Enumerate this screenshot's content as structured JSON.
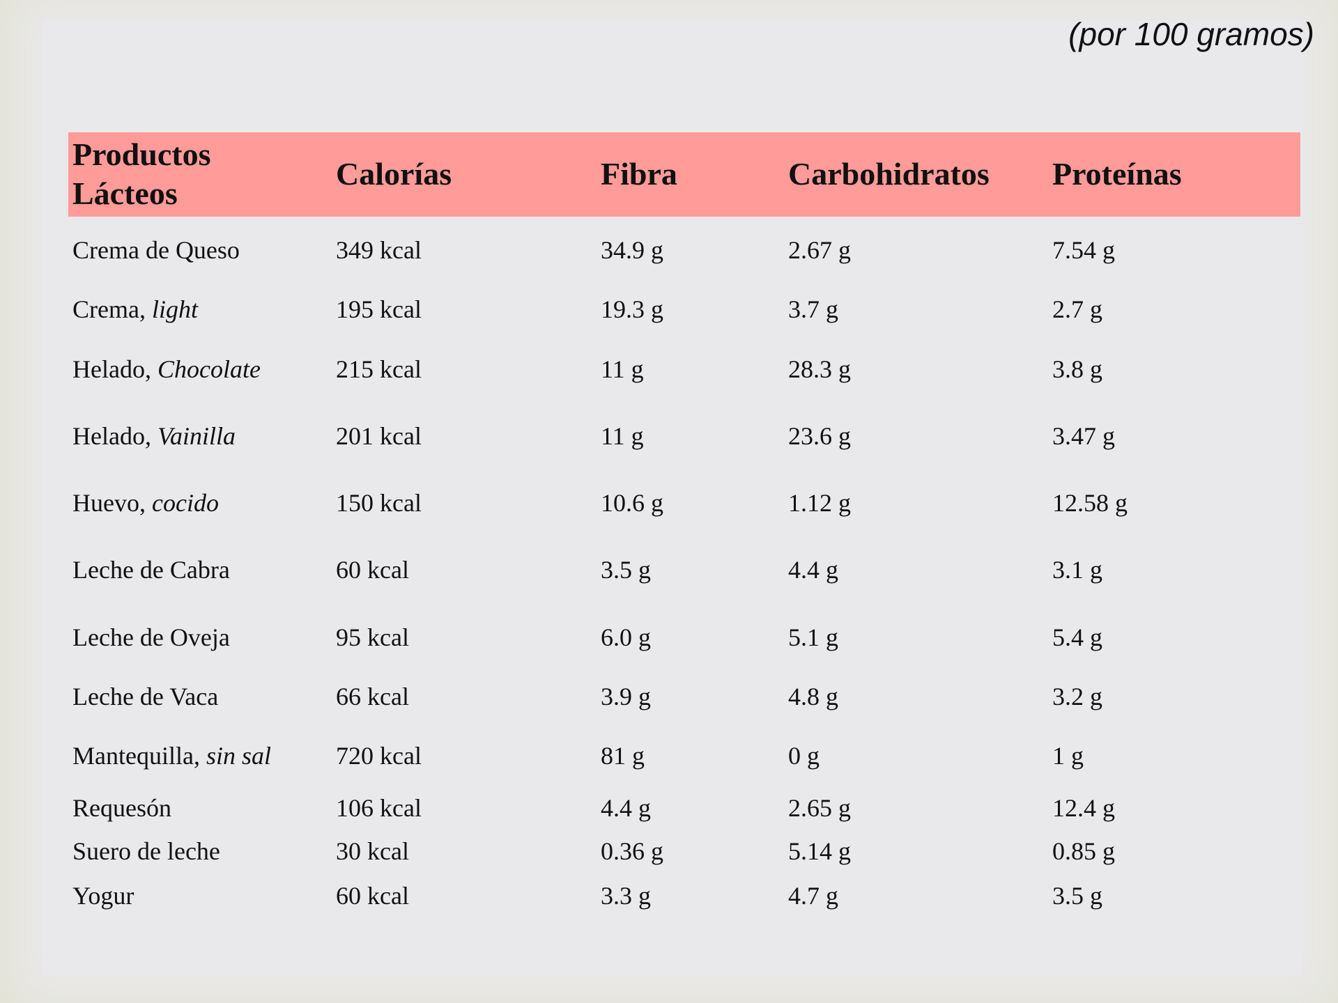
{
  "note": "(por 100 gramos)",
  "headers": [
    "Productos Lácteos",
    "Calorías",
    "Fibra",
    "Carbohidratos",
    "Proteínas"
  ],
  "header_first_lines": [
    "Productos",
    "Lácteos"
  ],
  "header_color": "#ff9b98",
  "rows": [
    {
      "name": "Crema de Queso",
      "variant": "",
      "cal": "349 kcal",
      "fib": "34.9 g",
      "carb": "2.67 g",
      "prot": "7.54 g"
    },
    {
      "name": "Crema, ",
      "variant": "light",
      "cal": "195 kcal",
      "fib": "19.3 g",
      "carb": "3.7 g",
      "prot": "2.7 g"
    },
    {
      "name": "Helado, ",
      "variant": "Chocolate",
      "cal": "215 kcal",
      "fib": "11 g",
      "carb": "28.3 g",
      "prot": "3.8 g"
    },
    {
      "name": "Helado, ",
      "variant": "Vainilla",
      "cal": "201 kcal",
      "fib": "11 g",
      "carb": "23.6 g",
      "prot": "3.47 g"
    },
    {
      "name": "Huevo, ",
      "variant": "cocido",
      "cal": "150 kcal",
      "fib": "10.6 g",
      "carb": "1.12 g",
      "prot": "12.58 g"
    },
    {
      "name": "Leche de Cabra",
      "variant": "",
      "cal": "60 kcal",
      "fib": "3.5 g",
      "carb": "4.4 g",
      "prot": "3.1 g"
    },
    {
      "name": "Leche de Oveja",
      "variant": "",
      "cal": "95 kcal",
      "fib": "6.0 g",
      "carb": "5.1 g",
      "prot": "5.4 g"
    },
    {
      "name": "Leche de Vaca",
      "variant": "",
      "cal": "66 kcal",
      "fib": "3.9 g",
      "carb": "4.8 g",
      "prot": "3.2 g"
    },
    {
      "name": "Mantequilla, ",
      "variant": "sin sal",
      "cal": "720 kcal",
      "fib": "81 g",
      "carb": "0 g",
      "prot": "1 g"
    },
    {
      "name": "Requesón",
      "variant": "",
      "cal": "106 kcal",
      "fib": "4.4 g",
      "carb": "2.65 g",
      "prot": "12.4 g"
    },
    {
      "name": "Suero de leche",
      "variant": "",
      "cal": "30 kcal",
      "fib": "0.36 g",
      "carb": "5.14 g",
      "prot": "0.85 g"
    },
    {
      "name": "Yogur",
      "variant": "",
      "cal": "60 kcal",
      "fib": "3.3 g",
      "carb": "4.7 g",
      "prot": "3.5 g"
    }
  ]
}
